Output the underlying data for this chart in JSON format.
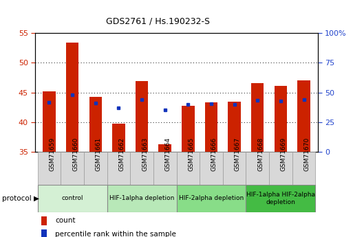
{
  "title": "GDS2761 / Hs.190232-S",
  "samples": [
    "GSM71659",
    "GSM71660",
    "GSM71661",
    "GSM71662",
    "GSM71663",
    "GSM71664",
    "GSM71665",
    "GSM71666",
    "GSM71667",
    "GSM71668",
    "GSM71669",
    "GSM71670"
  ],
  "count_values": [
    45.2,
    53.4,
    44.2,
    39.7,
    46.9,
    36.3,
    42.7,
    43.3,
    43.4,
    46.6,
    46.1,
    47.0
  ],
  "percentile_values": [
    41.8,
    47.8,
    41.0,
    36.8,
    43.8,
    35.4,
    39.6,
    40.2,
    40.1,
    43.4,
    43.0,
    44.1
  ],
  "ylim_left": [
    35,
    55
  ],
  "ylim_right": [
    0,
    100
  ],
  "yticks_left": [
    35,
    40,
    45,
    50,
    55
  ],
  "yticks_right": [
    0,
    25,
    50,
    75,
    100
  ],
  "bar_color": "#cc2200",
  "dot_color": "#1133bb",
  "bar_width": 0.55,
  "protocol_groups": [
    {
      "label": "control",
      "start": 0,
      "end": 3,
      "color": "#d4f0d4"
    },
    {
      "label": "HIF-1alpha depletion",
      "start": 3,
      "end": 6,
      "color": "#b8e8b8"
    },
    {
      "label": "HIF-2alpha depletion",
      "start": 6,
      "end": 9,
      "color": "#88dd88"
    },
    {
      "label": "HIF-1alpha HIF-2alpha\ndepletion",
      "start": 9,
      "end": 12,
      "color": "#44bb44"
    }
  ],
  "background_color": "#ffffff",
  "tick_label_color_left": "#cc2200",
  "tick_label_color_right": "#2244cc",
  "sample_box_color": "#d8d8d8",
  "sample_box_edge": "#999999"
}
